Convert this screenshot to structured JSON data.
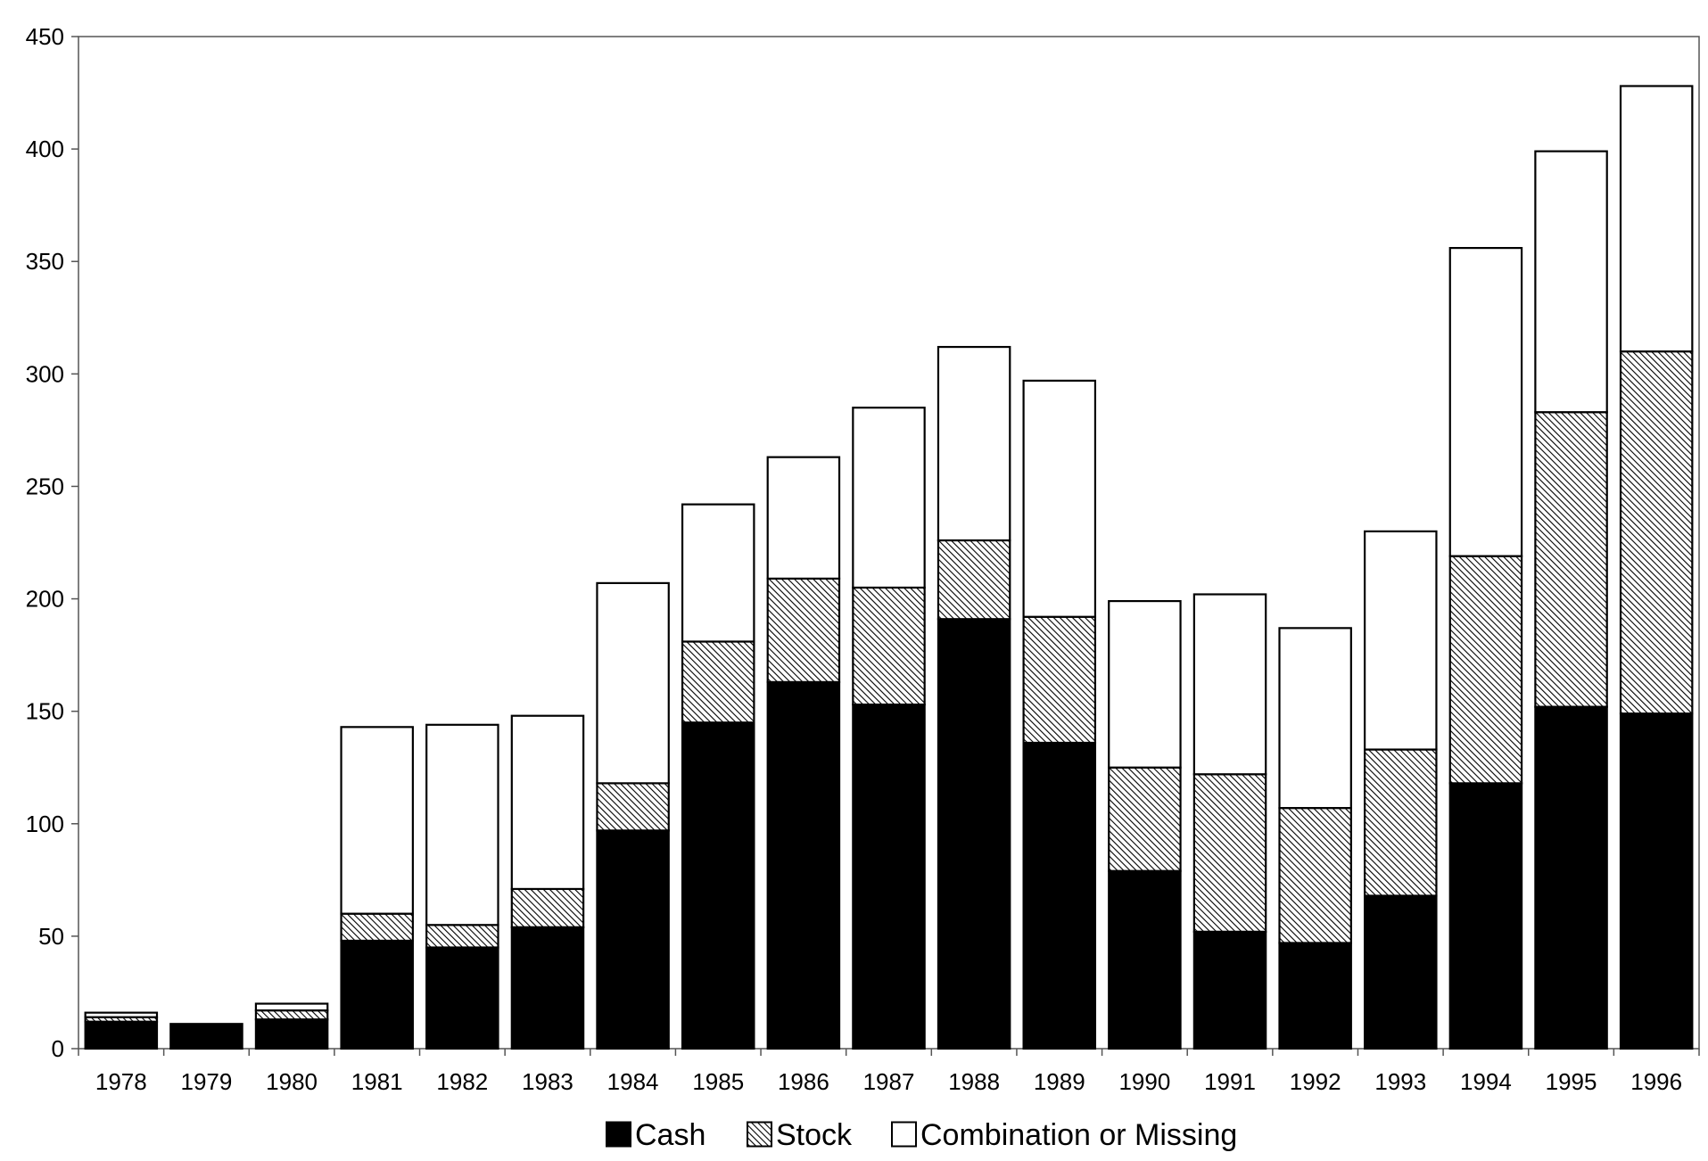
{
  "chart_data": {
    "type": "bar",
    "stacked": true,
    "title": "",
    "xlabel": "",
    "ylabel": "",
    "categories": [
      "1978",
      "1979",
      "1980",
      "1981",
      "1982",
      "1983",
      "1984",
      "1985",
      "1986",
      "1987",
      "1988",
      "1989",
      "1990",
      "1991",
      "1992",
      "1993",
      "1994",
      "1995",
      "1996"
    ],
    "series": [
      {
        "name": "Cash",
        "fill": "solid",
        "color": "#000000",
        "values": [
          12,
          11,
          13,
          48,
          45,
          54,
          97,
          145,
          163,
          153,
          191,
          136,
          79,
          52,
          47,
          68,
          118,
          152,
          149
        ]
      },
      {
        "name": "Stock",
        "fill": "hatched",
        "color": "#000000",
        "values": [
          2,
          0,
          4,
          12,
          10,
          17,
          21,
          36,
          46,
          52,
          35,
          56,
          46,
          70,
          60,
          65,
          101,
          131,
          161
        ]
      },
      {
        "name": "Combination or Missing",
        "fill": "open",
        "color": "#ffffff",
        "values": [
          2,
          0,
          3,
          83,
          89,
          77,
          89,
          61,
          54,
          80,
          86,
          105,
          74,
          80,
          80,
          97,
          137,
          116,
          118
        ]
      }
    ],
    "ylim": [
      0,
      450
    ],
    "yticks": [
      0,
      50,
      100,
      150,
      200,
      250,
      300,
      350,
      400,
      450
    ],
    "grid": false,
    "legend": "bottom"
  }
}
